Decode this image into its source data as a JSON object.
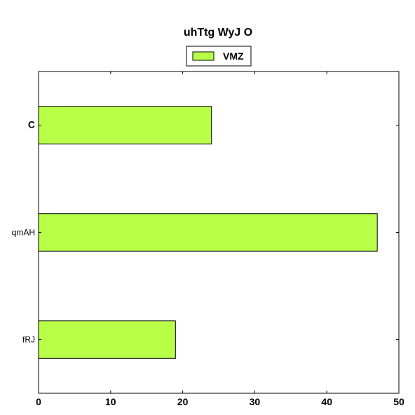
{
  "chart_data": {
    "type": "bar",
    "orientation": "horizontal",
    "title": "uhTtg  WyJ O",
    "xlabel": "",
    "ylabel": "",
    "categories": [
      "C",
      "qmAH",
      "fRJ"
    ],
    "series": [
      {
        "name": "VMZ",
        "values": [
          24,
          47,
          19
        ]
      }
    ],
    "xlim": [
      0,
      50
    ],
    "xticks": [
      "0",
      "10",
      "20",
      "30",
      "40",
      "50"
    ],
    "legend": "top-center",
    "grid": false,
    "colors": {
      "bar": "#b8ff48",
      "edge": "#000000",
      "text": "#000000"
    }
  }
}
